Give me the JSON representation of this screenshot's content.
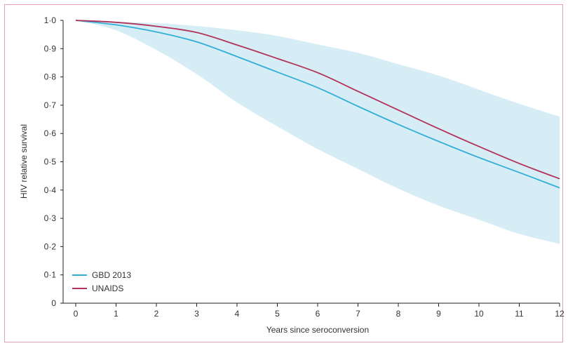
{
  "chart_data": {
    "type": "line",
    "title": "",
    "xlabel": "Years since seroconversion",
    "ylabel": "HIV relative survival",
    "xlim": [
      0,
      12
    ],
    "ylim": [
      0,
      1.0
    ],
    "x_ticks": [
      0,
      1,
      2,
      3,
      4,
      5,
      6,
      7,
      8,
      9,
      10,
      11,
      12
    ],
    "x_tick_labels": [
      "0",
      "1",
      "2",
      "3",
      "4",
      "5",
      "6",
      "7",
      "8",
      "9",
      "10",
      "11",
      "12"
    ],
    "y_ticks": [
      0,
      0.1,
      0.2,
      0.3,
      0.4,
      0.5,
      0.6,
      0.7,
      0.8,
      0.9,
      1.0
    ],
    "y_tick_labels": [
      "0",
      "0·1",
      "0·2",
      "0·3",
      "0·4",
      "0·5",
      "0·6",
      "0·7",
      "0·8",
      "0·9",
      "1·0"
    ],
    "grid": false,
    "legend_position": "bottom-left",
    "x": [
      0,
      1,
      2,
      3,
      4,
      5,
      6,
      7,
      8,
      9,
      10,
      11,
      12
    ],
    "series": [
      {
        "name": "GBD 2013",
        "color": "#33aed6",
        "values": [
          1.0,
          0.984,
          0.959,
          0.924,
          0.872,
          0.817,
          0.762,
          0.696,
          0.632,
          0.572,
          0.515,
          0.462,
          0.408
        ]
      },
      {
        "name": "UNAIDS",
        "color": "#b3325a",
        "values": [
          1.0,
          0.993,
          0.979,
          0.957,
          0.913,
          0.865,
          0.815,
          0.749,
          0.683,
          0.617,
          0.554,
          0.494,
          0.44
        ]
      }
    ],
    "uncertainty_band": {
      "series": "GBD 2013",
      "color": "#d6edf6",
      "upper": [
        1.0,
        0.995,
        0.99,
        0.98,
        0.965,
        0.945,
        0.915,
        0.885,
        0.845,
        0.805,
        0.755,
        0.705,
        0.66
      ],
      "lower": [
        1.0,
        0.965,
        0.895,
        0.81,
        0.71,
        0.625,
        0.545,
        0.475,
        0.405,
        0.345,
        0.295,
        0.245,
        0.21
      ]
    }
  }
}
